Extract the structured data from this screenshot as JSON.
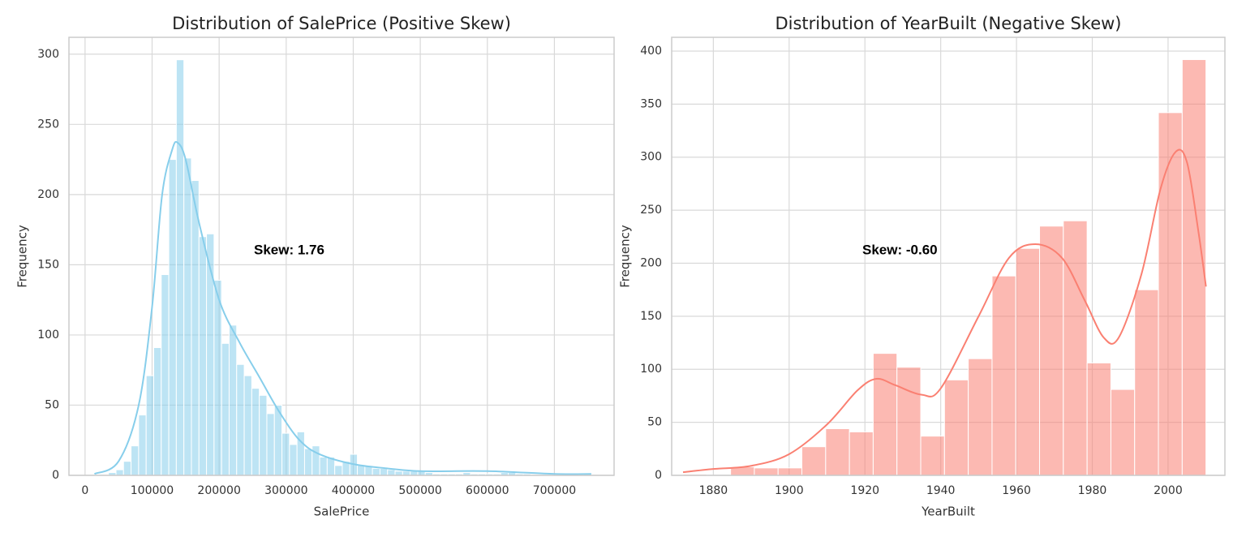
{
  "chart_data": [
    {
      "type": "histogram",
      "title": "Distribution of SalePrice (Positive Skew)",
      "x_label": "SalePrice",
      "y_label": "Frequency",
      "annotation": "Skew: 1.76",
      "color": "#87ceeb",
      "grid": true,
      "bins": [
        34900,
        46150,
        57400,
        68650,
        79900,
        91150,
        102400,
        113650,
        124900,
        136150,
        147400,
        158650,
        169900,
        181150,
        192400,
        203650,
        214900,
        226150,
        237400,
        248650,
        259900,
        271150,
        282400,
        293650,
        304900,
        316150,
        327400,
        338650,
        349900,
        361150,
        372400,
        383650,
        394900,
        406150,
        417400,
        428650,
        439900,
        451150,
        462400,
        473650,
        484900,
        496150,
        507400,
        518650,
        529900,
        541150,
        552400,
        563650,
        574900,
        586150,
        597400,
        608650,
        619900,
        631150,
        642400,
        653650,
        664900,
        676150,
        687400,
        698650,
        709900,
        721150,
        732400,
        743650,
        754900
      ],
      "values": [
        2,
        4,
        10,
        21,
        43,
        71,
        91,
        143,
        225,
        296,
        226,
        210,
        170,
        172,
        139,
        94,
        107,
        79,
        71,
        62,
        57,
        44,
        50,
        30,
        22,
        31,
        19,
        21,
        13,
        13,
        7,
        10,
        15,
        7,
        7,
        5,
        5,
        4,
        3,
        3,
        3,
        3,
        2,
        1,
        1,
        1,
        1,
        2,
        1,
        1,
        1,
        1,
        2,
        2,
        1,
        1,
        0,
        0,
        0,
        0,
        1,
        0,
        0,
        1
      ],
      "kde": {
        "x": [
          14000,
          50000,
          80000,
          100000,
          115000,
          130000,
          138000,
          150000,
          170000,
          200000,
          230000,
          260000,
          290000,
          320000,
          350000,
          400000,
          450000,
          500000,
          600000,
          700000,
          755000
        ],
        "values": [
          1,
          10,
          50,
          120,
          200,
          232,
          237,
          225,
          180,
          125,
          95,
          70,
          45,
          25,
          15,
          8,
          5,
          3,
          3,
          1,
          1
        ]
      },
      "xlim": [
        -24000,
        789000
      ],
      "ylim": [
        0,
        312
      ],
      "xticks": [
        0,
        100000,
        200000,
        300000,
        400000,
        500000,
        600000,
        700000
      ],
      "yticks": [
        0,
        50,
        100,
        150,
        200,
        250,
        300
      ]
    },
    {
      "type": "histogram",
      "title": "Distribution of YearBuilt (Negative Skew)",
      "x_label": "YearBuilt",
      "y_label": "Frequency",
      "annotation": "Skew: -0.60",
      "color": "#fa8072",
      "grid": true,
      "bins": [
        1872,
        1878.27,
        1884.55,
        1890.82,
        1897.09,
        1903.36,
        1909.64,
        1915.91,
        1922.18,
        1928.45,
        1934.73,
        1941,
        1947.27,
        1953.55,
        1959.82,
        1966.09,
        1972.36,
        1978.64,
        1984.91,
        1991.18,
        1997.45,
        2003.73,
        2010
      ],
      "values": [
        1,
        0,
        8,
        7,
        7,
        27,
        44,
        41,
        115,
        102,
        37,
        90,
        110,
        188,
        214,
        235,
        240,
        106,
        81,
        175,
        342,
        392
      ],
      "kde": {
        "x": [
          1872,
          1880,
          1890,
          1900,
          1910,
          1918,
          1923,
          1928,
          1935,
          1940,
          1950,
          1958,
          1965,
          1972,
          1978,
          1983,
          1987,
          1993,
          1998,
          2002,
          2005,
          2008,
          2010
        ],
        "values": [
          3,
          6,
          9,
          20,
          48,
          80,
          91,
          85,
          76,
          82,
          150,
          205,
          218,
          205,
          165,
          130,
          130,
          190,
          270,
          305,
          295,
          230,
          178
        ]
      },
      "xlim": [
        1869,
        2015
      ],
      "ylim": [
        0,
        413
      ],
      "xticks": [
        1880,
        1900,
        1920,
        1940,
        1960,
        1980,
        2000
      ],
      "yticks": [
        0,
        50,
        100,
        150,
        200,
        250,
        300,
        350,
        400
      ]
    }
  ]
}
